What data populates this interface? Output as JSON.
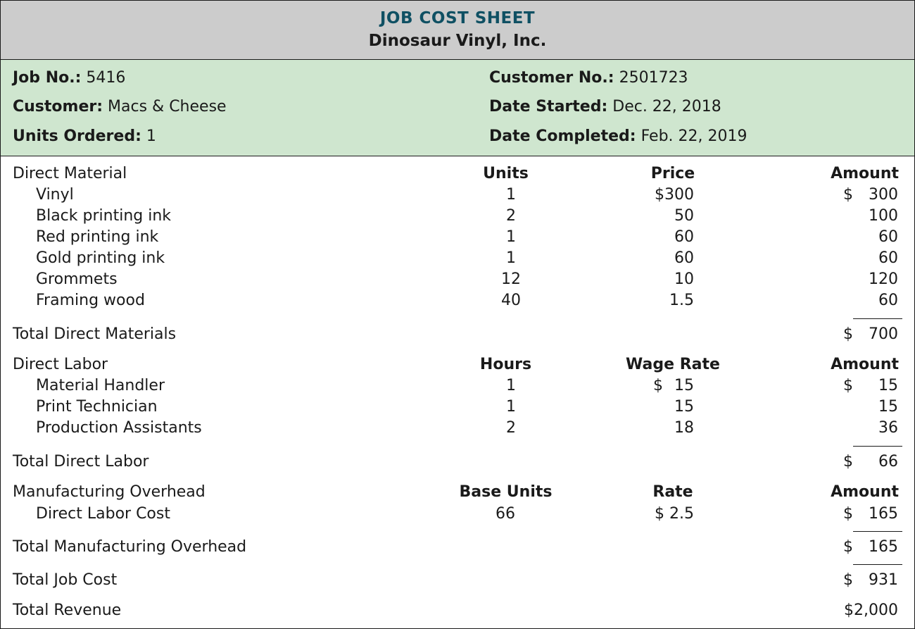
{
  "header": {
    "title": "JOB COST SHEET",
    "company": "Dinosaur Vinyl, Inc."
  },
  "info": {
    "job_no_label": "Job No.:",
    "job_no": "5416",
    "customer_label": "Customer:",
    "customer": "Macs & Cheese",
    "units_ordered_label": "Units Ordered:",
    "units_ordered": "1",
    "customer_no_label": "Customer No.:",
    "customer_no": "2501723",
    "date_started_label": "Date Started:",
    "date_started": "Dec. 22, 2018",
    "date_completed_label": "Date Completed:",
    "date_completed": "Feb. 22, 2019"
  },
  "direct_material": {
    "label": "Direct Material",
    "col_units": "Units",
    "col_price": "Price",
    "col_amount": "Amount",
    "items": [
      {
        "name": "Vinyl",
        "units": "1",
        "price": "$300",
        "amount_sign": "$",
        "amount": "300"
      },
      {
        "name": "Black printing ink",
        "units": "2",
        "price": "50",
        "amount_sign": "",
        "amount": "100"
      },
      {
        "name": "Red printing ink",
        "units": "1",
        "price": "60",
        "amount_sign": "",
        "amount": "60"
      },
      {
        "name": "Gold printing ink",
        "units": "1",
        "price": "60",
        "amount_sign": "",
        "amount": "60"
      },
      {
        "name": "Grommets",
        "units": "12",
        "price": "10",
        "amount_sign": "",
        "amount": "120"
      },
      {
        "name": "Framing wood",
        "units": "40",
        "price": "1.5",
        "amount_sign": "",
        "amount": "60"
      }
    ],
    "total_label": "Total Direct Materials",
    "total_sign": "$",
    "total": "700"
  },
  "direct_labor": {
    "label": "Direct Labor",
    "col_units": "Hours",
    "col_price": "Wage Rate",
    "col_amount": "Amount",
    "items": [
      {
        "name": "Material Handler",
        "units": "1",
        "price_sign": "$",
        "price": "15",
        "amount_sign": "$",
        "amount": "15"
      },
      {
        "name": "Print Technician",
        "units": "1",
        "price_sign": "",
        "price": "15",
        "amount_sign": "",
        "amount": "15"
      },
      {
        "name": "Production Assistants",
        "units": "2",
        "price_sign": "",
        "price": "18",
        "amount_sign": "",
        "amount": "36"
      }
    ],
    "total_label": "Total Direct Labor",
    "total_sign": "$",
    "total": "66"
  },
  "overhead": {
    "label": "Manufacturing Overhead",
    "col_units": "Base Units",
    "col_price": "Rate",
    "col_amount": "Amount",
    "items": [
      {
        "name": "Direct Labor Cost",
        "units": "66",
        "price": "$ 2.5",
        "amount_sign": "$",
        "amount": "165"
      }
    ],
    "total_label": "Total Manufacturing Overhead",
    "total_sign": "$",
    "total": "165"
  },
  "totals": {
    "job_cost_label": "Total Job Cost",
    "job_cost_sign": "$",
    "job_cost": "931",
    "revenue_label": "Total Revenue",
    "revenue": "$2,000"
  }
}
